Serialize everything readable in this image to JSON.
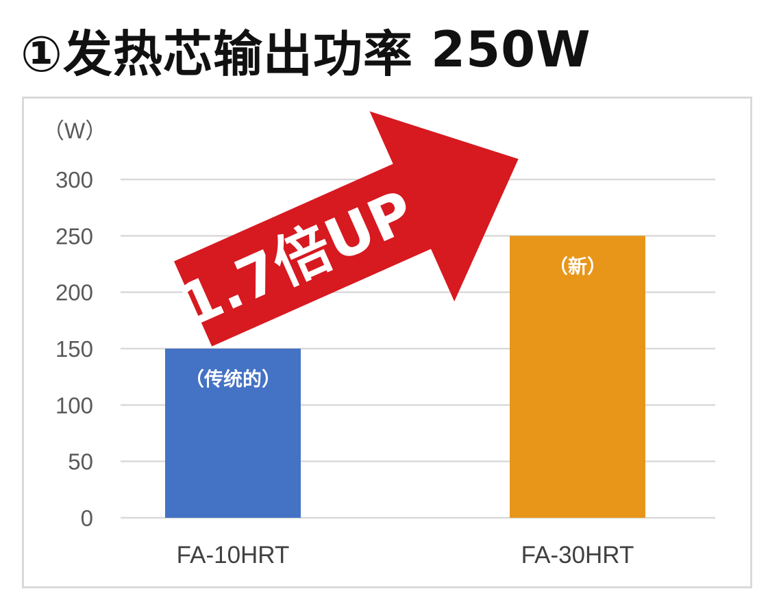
{
  "header": {
    "title": "①发热芯输出功率",
    "value": "250W"
  },
  "chart_data": {
    "type": "bar",
    "categories": [
      "FA-10HRT",
      "FA-30HRT"
    ],
    "values": [
      150,
      250
    ],
    "bar_labels": [
      "（传统的）",
      "（新）"
    ],
    "ylabel": "（W）",
    "ylim": [
      0,
      300
    ],
    "yticks": [
      0,
      50,
      100,
      150,
      200,
      250,
      300
    ],
    "grid": true,
    "annotation": "1.7倍UP",
    "colors": {
      "bars": [
        "#4472c4",
        "#e8961a"
      ],
      "arrow": "#d71920",
      "grid": "#d9d9d9",
      "ticks": "#595959"
    }
  }
}
